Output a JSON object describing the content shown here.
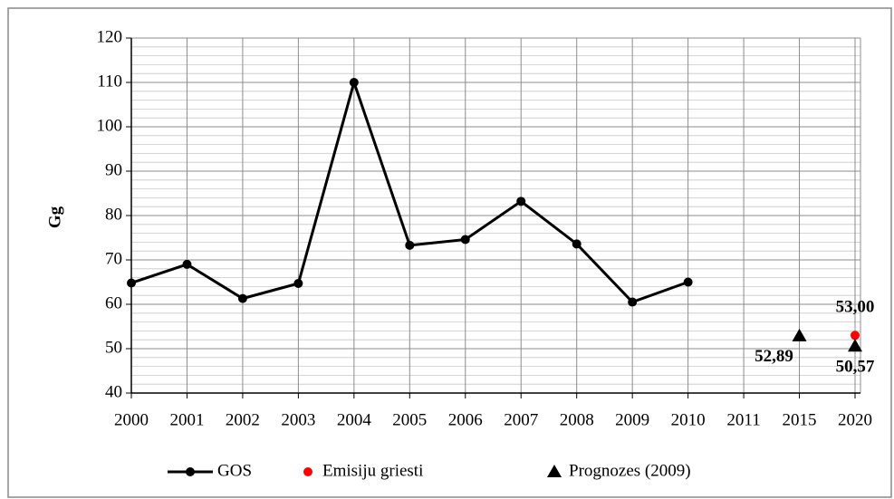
{
  "chart_data": {
    "type": "line",
    "ylabel": "Gg",
    "categories": [
      "2000",
      "2001",
      "2002",
      "2003",
      "2004",
      "2005",
      "2006",
      "2007",
      "2008",
      "2009",
      "2010",
      "2011",
      "2015",
      "2020"
    ],
    "series": [
      {
        "name": "GOS",
        "color": "#000000",
        "marker": "circle",
        "line": true,
        "values": [
          64.8,
          69,
          61.3,
          64.7,
          110,
          73.3,
          74.6,
          83.2,
          73.6,
          60.5,
          65,
          null,
          null,
          null
        ]
      },
      {
        "name": "Emisiju griesti",
        "color": "#ff0000",
        "marker": "circle",
        "line": false,
        "values": [
          null,
          null,
          null,
          null,
          null,
          null,
          null,
          null,
          null,
          null,
          null,
          null,
          null,
          53.0
        ],
        "value_labels": [
          null,
          null,
          null,
          null,
          null,
          null,
          null,
          null,
          null,
          null,
          null,
          null,
          null,
          "53,00"
        ]
      },
      {
        "name": "Prognozes (2009)",
        "color": "#000000",
        "marker": "triangle",
        "line": false,
        "values": [
          null,
          null,
          null,
          null,
          null,
          null,
          null,
          null,
          null,
          null,
          null,
          null,
          52.89,
          50.57
        ],
        "value_labels": [
          null,
          null,
          null,
          null,
          null,
          null,
          null,
          null,
          null,
          null,
          null,
          null,
          "52,89",
          "50,57"
        ]
      }
    ],
    "ylim": [
      40,
      120
    ],
    "yticks": [
      40,
      50,
      60,
      70,
      80,
      90,
      100,
      110,
      120
    ],
    "yminorticks": [
      42,
      44,
      46,
      48,
      52,
      54,
      56,
      58,
      62,
      64,
      66,
      68,
      72,
      74,
      76,
      78,
      82,
      84,
      86,
      88,
      92,
      94,
      96,
      98,
      102,
      104,
      106,
      108,
      112,
      114,
      116,
      118
    ],
    "grid": true,
    "legend": "bottom"
  }
}
